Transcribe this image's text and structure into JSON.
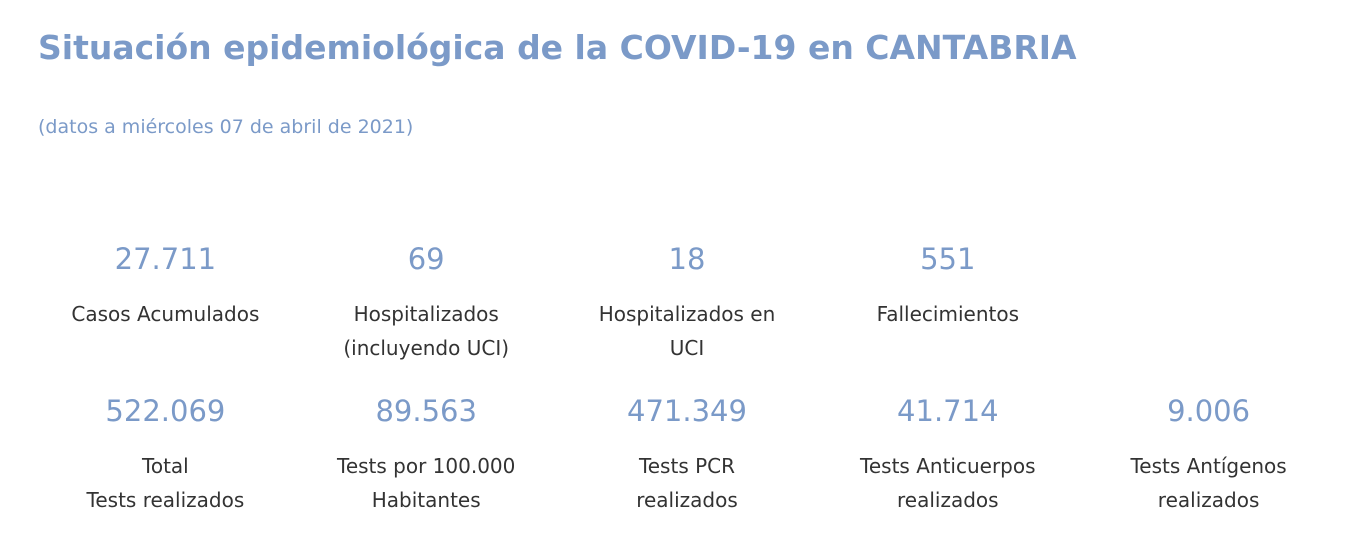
{
  "page": {
    "title": "Situación epidemiológica de la COVID-19 en CANTABRIA",
    "subtitle": "(datos a miércoles 07 de abril de 2021)"
  },
  "stats_row1": [
    {
      "value": "27.711",
      "label": "Casos Acumulados"
    },
    {
      "value": "69",
      "label": "Hospitalizados\n(incluyendo UCI)"
    },
    {
      "value": "18",
      "label": "Hospitalizados en\nUCI"
    },
    {
      "value": "551",
      "label": "Fallecimientos"
    }
  ],
  "stats_row2": [
    {
      "value": "522.069",
      "label": "Total\nTests realizados"
    },
    {
      "value": "89.563",
      "label": "Tests por 100.000\nHabitantes"
    },
    {
      "value": "471.349",
      "label": "Tests PCR\nrealizados"
    },
    {
      "value": "41.714",
      "label": "Tests Anticuerpos\nrealizados"
    },
    {
      "value": "9.006",
      "label": "Tests Antígenos\nrealizados"
    }
  ],
  "colors": {
    "accent": "#7b9ac8",
    "label_text": "#333333",
    "background": "#ffffff"
  }
}
